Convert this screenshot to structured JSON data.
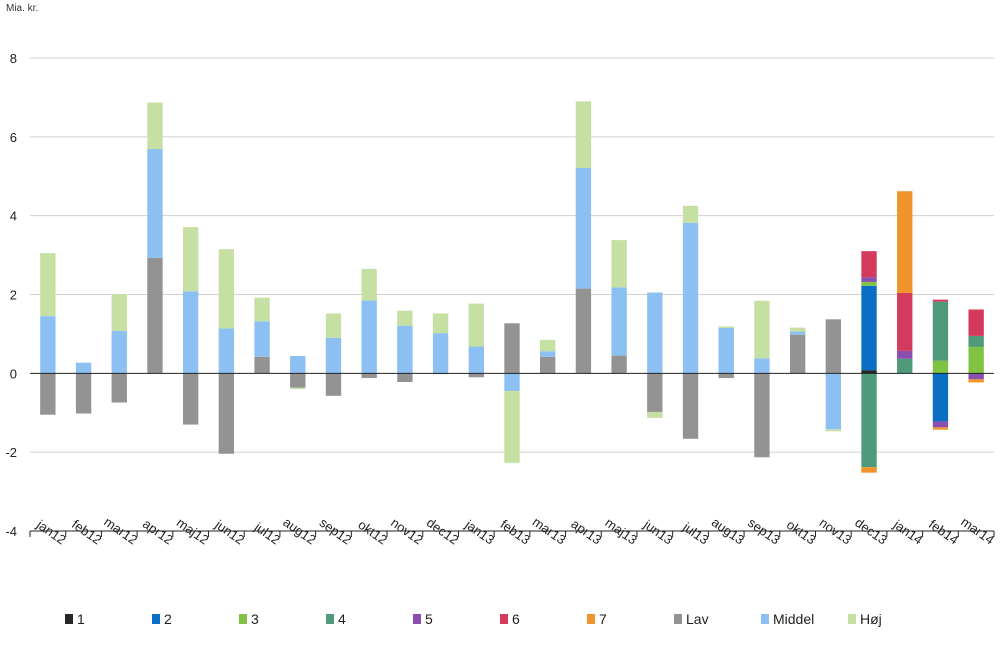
{
  "chart_data": {
    "type": "bar",
    "stacked": true,
    "unit_label": "Mia. kr.",
    "ylim": [
      -4,
      8
    ],
    "yticks": [
      -4,
      -2,
      0,
      2,
      4,
      6,
      8
    ],
    "grid": true,
    "legend_position": "bottom",
    "categories": [
      "jan12",
      "feb12",
      "mar12",
      "apr12",
      "maj12",
      "jun12",
      "jul12",
      "aug12",
      "sep12",
      "okt12",
      "nov12",
      "dec12",
      "jan13",
      "feb13",
      "mar13",
      "apr13",
      "maj13",
      "jun13",
      "jul13",
      "aug13",
      "sep13",
      "okt13",
      "nov13",
      "dec13",
      "jan14",
      "feb14",
      "mar14"
    ],
    "series": [
      {
        "name": "1",
        "color": "#262626",
        "values": [
          0,
          0,
          0,
          0,
          0,
          0,
          0,
          0,
          0,
          0,
          0,
          0,
          0,
          0,
          0,
          0,
          0,
          0,
          0,
          0,
          0,
          0,
          0,
          0.08,
          0,
          0,
          0
        ]
      },
      {
        "name": "2",
        "color": "#0a6fc4",
        "values": [
          0,
          0,
          0,
          0,
          0,
          0,
          0,
          0,
          0,
          0,
          0,
          0,
          0,
          0,
          0,
          0,
          0,
          0,
          0,
          0,
          0,
          0,
          0,
          2.14,
          0,
          -1.22,
          0
        ]
      },
      {
        "name": "3",
        "color": "#80c342",
        "values": [
          0,
          0,
          0,
          0,
          0,
          0,
          0,
          0,
          0,
          0,
          0,
          0,
          0,
          0,
          0,
          0,
          0,
          0,
          0,
          0,
          0,
          0,
          0,
          0.1,
          0,
          0.32,
          0.67
        ]
      },
      {
        "name": "4",
        "color": "#4e9a7a",
        "values": [
          0,
          0,
          0,
          0,
          0,
          0,
          0,
          0,
          0,
          0,
          0,
          0,
          0,
          0,
          0,
          0,
          0,
          0,
          0,
          0,
          0,
          0,
          0,
          -2.38,
          0.37,
          1.5,
          0.28
        ]
      },
      {
        "name": "5",
        "color": "#8a4db0",
        "values": [
          0,
          0,
          0,
          0,
          0,
          0,
          0,
          0,
          0,
          0,
          0,
          0,
          0,
          0,
          0,
          0,
          0,
          0,
          0,
          0,
          0,
          0,
          0,
          0.12,
          0.2,
          -0.15,
          -0.15
        ]
      },
      {
        "name": "6",
        "color": "#d33a5c",
        "values": [
          0,
          0,
          0,
          0,
          0,
          0,
          0,
          0,
          0,
          0,
          0,
          0,
          0,
          0,
          0,
          0,
          0,
          0,
          0,
          0,
          0,
          0,
          0,
          0.66,
          1.47,
          0.05,
          0.67
        ]
      },
      {
        "name": "7",
        "color": "#f0932b",
        "values": [
          0,
          0,
          0,
          0,
          0,
          0,
          0,
          0,
          0,
          0,
          0,
          0,
          0,
          0,
          0,
          0,
          0,
          0,
          0,
          0,
          0,
          0,
          0,
          -0.14,
          2.58,
          -0.06,
          -0.08
        ]
      },
      {
        "name": "Lav",
        "color": "#939393",
        "values": [
          -1.05,
          -1.02,
          -0.74,
          2.93,
          -1.3,
          -2.04,
          0.42,
          -0.36,
          -0.57,
          -0.12,
          -0.22,
          -0.02,
          -0.1,
          1.27,
          0.42,
          2.15,
          0.45,
          -0.98,
          -1.66,
          -0.12,
          -2.13,
          0.98,
          1.37,
          0,
          0,
          0,
          0
        ]
      },
      {
        "name": "Middel",
        "color": "#8cc0f2",
        "values": [
          1.45,
          0.27,
          1.08,
          2.76,
          2.08,
          1.14,
          0.9,
          0.44,
          0.9,
          1.85,
          1.21,
          1.02,
          0.68,
          -0.45,
          0.14,
          3.06,
          1.73,
          2.05,
          3.82,
          1.15,
          0.38,
          0.08,
          -1.42,
          0,
          0,
          0,
          0
        ]
      },
      {
        "name": "Høj",
        "color": "#c6e0a4",
        "values": [
          1.6,
          0,
          0.93,
          1.18,
          1.63,
          2.01,
          0.6,
          -0.04,
          0.62,
          0.8,
          0.38,
          0.5,
          1.09,
          -1.82,
          0.29,
          1.69,
          1.2,
          -0.15,
          0.43,
          0.04,
          1.46,
          0.1,
          -0.05,
          0,
          0,
          0,
          0
        ]
      }
    ]
  }
}
